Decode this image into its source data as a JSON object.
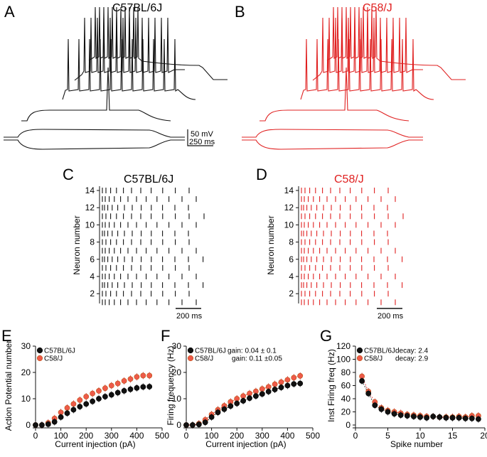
{
  "colors": {
    "b6": "#111111",
    "c58": "#e02020",
    "c58_fill": "#ee5a4a"
  },
  "panels": {
    "A": {
      "letter": "A",
      "title": "C57BL/6J"
    },
    "B": {
      "letter": "B",
      "title": "C58/J"
    },
    "C": {
      "letter": "C",
      "title": "C57BL/6J"
    },
    "D": {
      "letter": "D",
      "title": "C58/J"
    },
    "E": {
      "letter": "E"
    },
    "F": {
      "letter": "F"
    },
    "G": {
      "letter": "G"
    }
  },
  "scalebar_ab": {
    "voltage": "50 mV",
    "time": "250 ms"
  },
  "raster": {
    "ylabel": "Neuron number",
    "yticks": [
      "2",
      "4",
      "6",
      "8",
      "10",
      "12",
      "14"
    ],
    "scale": "200 ms"
  },
  "chart_data": [
    {
      "panel": "E",
      "type": "scatter",
      "xlabel": "Current injection (pA)",
      "ylabel": "Action Potential number",
      "xlim": [
        0,
        500
      ],
      "ylim": [
        0,
        30
      ],
      "xticks": [
        "0",
        "100",
        "200",
        "300",
        "400",
        "500"
      ],
      "yticks": [
        "0",
        "10",
        "20",
        "30"
      ],
      "x": [
        0,
        25,
        50,
        75,
        100,
        125,
        150,
        175,
        200,
        225,
        250,
        275,
        300,
        325,
        350,
        375,
        400,
        425,
        450
      ],
      "series": [
        {
          "name": "C57BL/6J",
          "values": [
            0,
            0,
            0.3,
            1.2,
            3.0,
            4.5,
            5.8,
            7.0,
            8.0,
            9.0,
            10.0,
            10.8,
            11.5,
            12.3,
            13.0,
            13.6,
            14.1,
            14.5,
            14.6
          ]
        },
        {
          "name": "C58/J",
          "values": [
            0,
            0,
            0.8,
            2.5,
            4.8,
            6.5,
            8.0,
            9.5,
            10.8,
            12.0,
            13.0,
            14.0,
            15.0,
            15.8,
            16.8,
            17.5,
            18.3,
            18.8,
            18.8
          ]
        }
      ],
      "legend": [
        "C57BL/6J",
        "C58/J"
      ]
    },
    {
      "panel": "F",
      "type": "scatter",
      "xlabel": "Current injection (pA)",
      "ylabel": "Firing frequency (Hz)",
      "xlim": [
        0,
        500
      ],
      "ylim": [
        0,
        30
      ],
      "xticks": [
        "0",
        "100",
        "200",
        "300",
        "400",
        "500"
      ],
      "yticks": [
        "0",
        "10",
        "20",
        "30"
      ],
      "x": [
        0,
        25,
        50,
        75,
        100,
        125,
        150,
        175,
        200,
        225,
        250,
        275,
        300,
        325,
        350,
        375,
        400,
        425,
        450
      ],
      "series": [
        {
          "name": "C57BL/6J",
          "values": [
            0,
            0,
            0.2,
            1.0,
            3.0,
            4.8,
            6.0,
            7.2,
            8.2,
            9.2,
            10.2,
            11.0,
            11.8,
            12.7,
            13.5,
            14.3,
            15.0,
            15.6,
            15.8
          ]
        },
        {
          "name": "C58/J",
          "values": [
            0,
            0,
            0.5,
            2.0,
            4.0,
            5.8,
            7.3,
            8.8,
            10.0,
            11.0,
            12.0,
            12.8,
            13.7,
            14.5,
            15.5,
            16.3,
            17.2,
            18.0,
            18.7
          ]
        }
      ],
      "legend": [
        "C57BL/6J",
        "C58/J"
      ],
      "annotations": [
        "gain: 0.04 ± 0.1",
        "gain: 0.11 ±0.05"
      ]
    },
    {
      "panel": "G",
      "type": "scatter",
      "xlabel": "Spike number",
      "ylabel": "Inst Firing freq (Hz)",
      "xlim": [
        0,
        20
      ],
      "ylim": [
        0,
        120
      ],
      "xticks": [
        "0",
        "5",
        "10",
        "15",
        "20"
      ],
      "yticks": [
        "0",
        "20",
        "40",
        "60",
        "80",
        "100",
        "120"
      ],
      "x": [
        1,
        2,
        3,
        4,
        5,
        6,
        7,
        8,
        9,
        10,
        11,
        12,
        13,
        14,
        15,
        16,
        17,
        18,
        19
      ],
      "series": [
        {
          "name": "C57BL/6J",
          "values": [
            67,
            48,
            30,
            24,
            20,
            17,
            15,
            14,
            13,
            12,
            11,
            13,
            12,
            11,
            11,
            11,
            10,
            10,
            9
          ]
        },
        {
          "name": "C58/J",
          "values": [
            74,
            51,
            35,
            26,
            22,
            20,
            18,
            16,
            15,
            14,
            13,
            13,
            12,
            12,
            12,
            13,
            12,
            14,
            14
          ]
        }
      ],
      "legend": [
        "C57BL/6J",
        "C58/J"
      ],
      "annotations": [
        "decay: 2.4",
        "decay: 2.9"
      ]
    }
  ]
}
